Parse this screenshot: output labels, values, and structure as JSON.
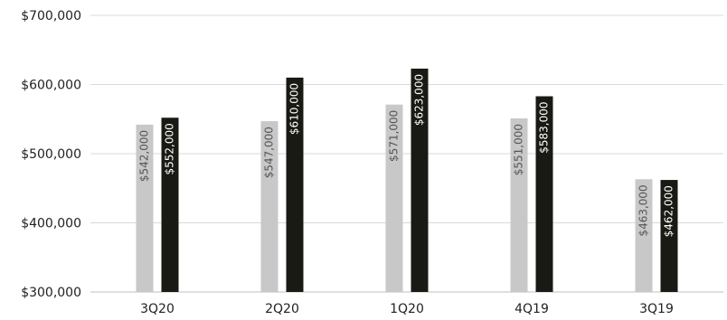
{
  "chart_data": {
    "type": "bar",
    "title": "",
    "xlabel": "",
    "ylabel": "",
    "categories": [
      "3Q20",
      "2Q20",
      "1Q20",
      "4Q19",
      "3Q19"
    ],
    "series": [
      {
        "values": [
          542000,
          547000,
          571000,
          551000,
          463000
        ],
        "labels": [
          "$542,000",
          "$547,000",
          "$571,000",
          "$551,000",
          "$463,000"
        ],
        "color": "#c8c8c8",
        "label_color": "#555555"
      },
      {
        "values": [
          552000,
          610000,
          623000,
          583000,
          462000
        ],
        "labels": [
          "$552,000",
          "$610,000",
          "$623,000",
          "$583,000",
          "$462,000"
        ],
        "color": "#1a1a14",
        "label_color": "#ffffff"
      }
    ],
    "ylim": [
      300000,
      700000
    ],
    "yticks": [
      300000,
      400000,
      500000,
      600000,
      700000
    ],
    "ytick_labels": [
      "$300,000",
      "$400,000",
      "$500,000",
      "$600,000",
      "$700,000"
    ],
    "grid": true,
    "legend": "none"
  }
}
